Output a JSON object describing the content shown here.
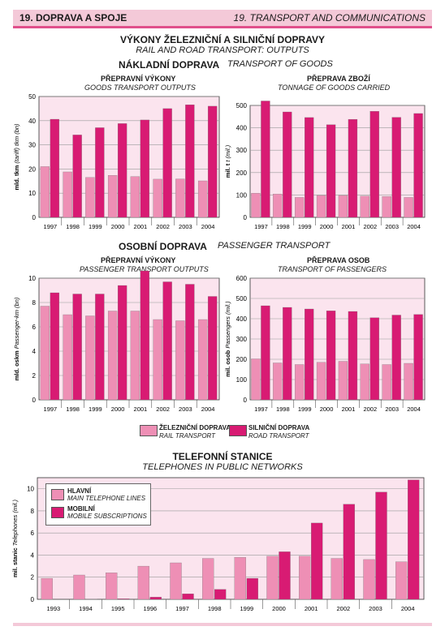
{
  "header": {
    "left": "19. DOPRAVA A SPOJE",
    "right": "19. TRANSPORT AND COMMUNICATIONS"
  },
  "section1": {
    "title_cz": "VÝKONY ŽELEZNIČNÍ A SILNIČNÍ DOPRAVY",
    "title_en": "RAIL AND ROAD TRANSPORT: OUTPUTS"
  },
  "freight": {
    "cz": "NÁKLADNÍ DOPRAVA",
    "en": "TRANSPORT OF GOODS"
  },
  "passenger": {
    "cz": "OSOBNÍ DOPRAVA",
    "en": "PASSENGER TRANSPORT"
  },
  "legend": {
    "rail_cz": "ŽELEZNIČNÍ DOPRAVA",
    "rail_en": "RAIL TRANSPORT",
    "road_cz": "SILNIČNÍ DOPRAVA",
    "road_en": "ROAD TRANSPORT"
  },
  "telephones": {
    "title_cz": "TELEFONNÍ STANICE",
    "title_en": "TELEPHONES IN PUBLIC NETWORKS",
    "main_cz": "HLAVNÍ",
    "main_en": "MAIN TELEPHONE LINES",
    "mobile_cz": "MOBILNÍ",
    "mobile_en": "MOBILE SUBSCRIPTIONS"
  },
  "colors": {
    "rail": "#ee8fb5",
    "road": "#d81b73",
    "bg": "#fbe4ee",
    "grid": "#9a9a9a"
  },
  "chart_data": [
    {
      "type": "bar",
      "title": "PŘEPRAVNÍ VÝKONY",
      "subtitle": "GOODS TRANSPORT OUTPUTS",
      "ylabel": "mld. tkm",
      "ylabel_en": "(tariff) tkm (bn)",
      "categories": [
        "1997",
        "1998",
        "1999",
        "2000",
        "2001",
        "2002",
        "2003",
        "2004"
      ],
      "ylim": [
        0,
        50
      ],
      "yticks": [
        0,
        10,
        20,
        30,
        40,
        50
      ],
      "series": [
        {
          "name": "ŽELEZNIČNÍ DOPRAVA",
          "values": [
            21.0,
            18.8,
            16.5,
            17.4,
            16.9,
            15.8,
            15.9,
            15.1
          ]
        },
        {
          "name": "SILNIČNÍ DOPRAVA",
          "values": [
            40.6,
            34.1,
            37.1,
            38.8,
            40.3,
            45.0,
            46.6,
            46.0
          ]
        }
      ]
    },
    {
      "type": "bar",
      "title": "PŘEPRAVA ZBOŽÍ",
      "subtitle": "TONNAGE OF GOODS CARRIED",
      "ylabel": "mil. t",
      "ylabel_en": "t (mil.)",
      "categories": [
        "1997",
        "1998",
        "1999",
        "2000",
        "2001",
        "2002",
        "2003",
        "2004"
      ],
      "ylim": [
        0,
        500
      ],
      "yticks": [
        0,
        100,
        200,
        300,
        400,
        500
      ],
      "series": [
        {
          "name": "ŽELEZNIČNÍ DOPRAVA",
          "values": [
            108,
            104,
            89,
            98,
            98,
            95,
            93,
            89
          ]
        },
        {
          "name": "SILNIČNÍ DOPRAVA",
          "values": [
            520,
            471,
            446,
            414,
            438,
            474,
            447,
            464
          ]
        }
      ]
    },
    {
      "type": "bar",
      "title": "PŘEPRAVNÍ VÝKONY",
      "subtitle": "PASSENGER TRANSPORT OUTPUTS",
      "ylabel": "mld. oskm",
      "ylabel_en": "Passenger-km (bn)",
      "categories": [
        "1997",
        "1998",
        "1999",
        "2000",
        "2001",
        "2002",
        "2003",
        "2004"
      ],
      "ylim": [
        0,
        10
      ],
      "yticks": [
        0,
        2,
        4,
        6,
        8,
        10
      ],
      "series": [
        {
          "name": "ŽELEZNIČNÍ DOPRAVA",
          "values": [
            7.7,
            7.0,
            6.9,
            7.3,
            7.3,
            6.6,
            6.5,
            6.6
          ]
        },
        {
          "name": "SILNIČNÍ DOPRAVA",
          "values": [
            8.8,
            8.7,
            8.7,
            9.4,
            10.6,
            9.7,
            9.5,
            8.5
          ]
        }
      ]
    },
    {
      "type": "bar",
      "title": "PŘEPRAVA OSOB",
      "subtitle": "TRANSPORT OF PASSENGERS",
      "ylabel": "mil. osob",
      "ylabel_en": "Passengers (mil.)",
      "categories": [
        "1997",
        "1998",
        "1999",
        "2000",
        "2001",
        "2002",
        "2003",
        "2004"
      ],
      "ylim": [
        0,
        600
      ],
      "yticks": [
        0,
        100,
        200,
        300,
        400,
        500,
        600
      ],
      "series": [
        {
          "name": "ŽELEZNIČNÍ DOPRAVA",
          "values": [
            202,
            182,
            174,
            185,
            190,
            177,
            174,
            180
          ]
        },
        {
          "name": "SILNIČNÍ DOPRAVA",
          "values": [
            464,
            456,
            448,
            439,
            436,
            405,
            418,
            421
          ]
        }
      ]
    },
    {
      "type": "bar",
      "title": "TELEFONNÍ STANICE",
      "subtitle": "TELEPHONES IN PUBLIC NETWORKS",
      "ylabel": "mil. stanic",
      "ylabel_en": "Telephones (mil.)",
      "categories": [
        "1993",
        "1994",
        "1995",
        "1996",
        "1997",
        "1998",
        "1999",
        "2000",
        "2001",
        "2002",
        "2003",
        "2004"
      ],
      "ylim": [
        0,
        11
      ],
      "yticks": [
        0,
        2,
        4,
        6,
        8,
        10
      ],
      "series": [
        {
          "name": "HLAVNÍ",
          "values": [
            1.9,
            2.2,
            2.4,
            3.0,
            3.3,
            3.7,
            3.8,
            3.9,
            3.9,
            3.7,
            3.6,
            3.4
          ]
        },
        {
          "name": "MOBILNÍ",
          "values": [
            0.0,
            0.02,
            0.05,
            0.2,
            0.5,
            0.9,
            1.9,
            4.3,
            6.9,
            8.6,
            9.7,
            10.8
          ]
        }
      ]
    }
  ]
}
